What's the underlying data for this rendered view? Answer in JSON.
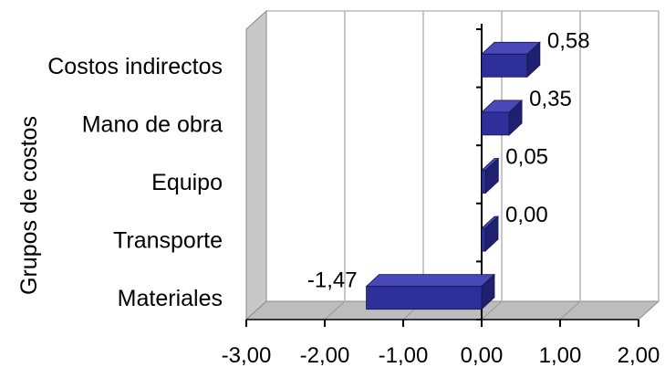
{
  "chart_data": {
    "type": "bar",
    "orientation": "horizontal",
    "style": "3d",
    "title": "",
    "xlabel": "",
    "ylabel": "Grupos de costos",
    "categories": [
      "Costos indirectos",
      "Mano de obra",
      "Equipo",
      "Transporte",
      "Materiales"
    ],
    "values": [
      0.58,
      0.35,
      0.05,
      0.0,
      -1.47
    ],
    "data_labels": [
      "0,58",
      "0,35",
      "0,05",
      "0,00",
      "-1,47"
    ],
    "xlim": [
      -3,
      2
    ],
    "x_ticks": [
      -3,
      -2,
      -1,
      0,
      1,
      2
    ],
    "x_tick_labels": [
      "-3,00",
      "-2,00",
      "-1,00",
      "0,00",
      "1,00",
      "2,00"
    ],
    "grid": true,
    "legend": "none",
    "colors": {
      "bar_front": "#2f2f9c",
      "bar_top": "#4848b8",
      "bar_side": "#202070",
      "wall": "#ffffff",
      "wall_side": "#c8c8c8",
      "floor": "#bdbdbd",
      "grid": "#c6c6c6"
    }
  }
}
